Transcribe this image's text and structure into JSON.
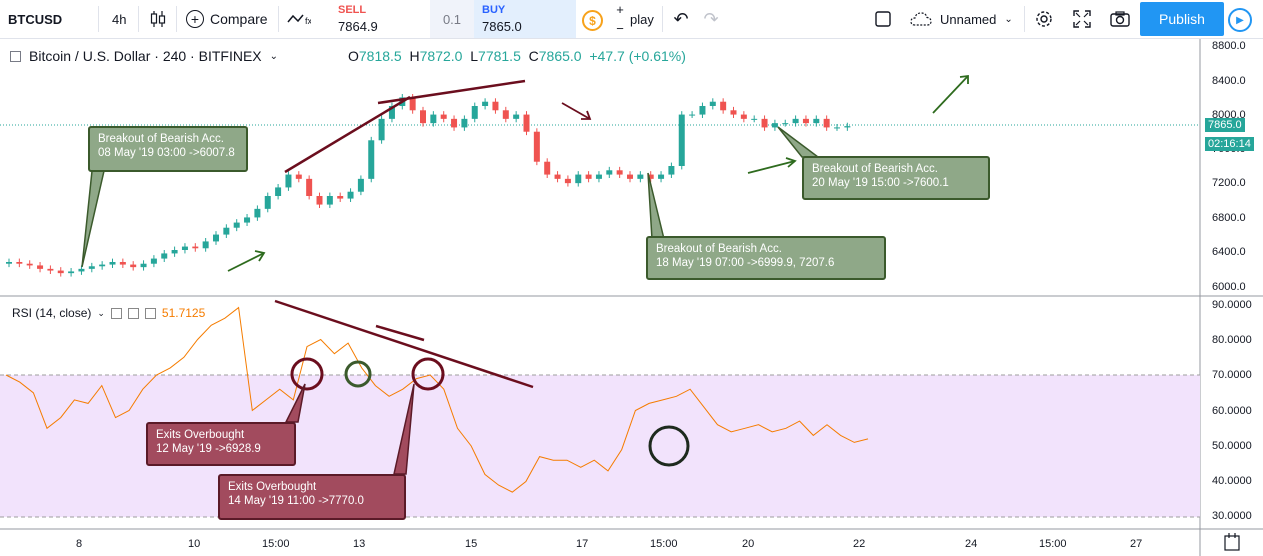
{
  "toolbar": {
    "symbol": "BTCUSD",
    "interval": "4h",
    "compare_label": "Compare",
    "sell_label": "SELL",
    "sell_price": "7864.9",
    "spread": "0.1",
    "buy_label": "BUY",
    "buy_price": "7865.0",
    "plus": "+",
    "minus": "−",
    "replay_label": "play",
    "layout_name": "Unnamed",
    "publish_label": "Publish"
  },
  "legend": {
    "title": "Bitcoin / U.S. Dollar · 240 · BITFINEX",
    "open_label": "O",
    "open": "7818.5",
    "high_label": "H",
    "high": "7872.0",
    "low_label": "L",
    "low": "7781.5",
    "close_label": "C",
    "close": "7865.0",
    "change": "+47.7 (+0.61%)"
  },
  "price_axis": {
    "ticks": [
      "8800.0",
      "8400.0",
      "8000.0",
      "7600.0",
      "7200.0",
      "6800.0",
      "6400.0",
      "6000.0"
    ],
    "current": "7865.0",
    "countdown": "02:16:14"
  },
  "rsi": {
    "label": "RSI (14, close)",
    "value": "51.7125",
    "ticks": [
      "90.0000",
      "80.0000",
      "70.0000",
      "60.0000",
      "50.0000",
      "40.0000",
      "30.0000"
    ]
  },
  "time_axis": [
    "8",
    "10",
    "15:00",
    "13",
    "15",
    "17",
    "15:00",
    "20",
    "22",
    "24",
    "15:00",
    "27"
  ],
  "annotations": {
    "note1_line1": "Breakout of Bearish Acc.",
    "note1_line2": "08 May '19 03:00 ->6007.8",
    "note2_line1": "Breakout of Bearish Acc.",
    "note2_line2": "18 May '19 07:00 ->6999.9, 7207.6",
    "note3_line1": "Breakout of Bearish Acc.",
    "note3_line2": "20 May '19 15:00 ->7600.1",
    "note4_line1": "Exits Overbought",
    "note4_line2": "12 May '19 ->6928.9",
    "note5_line1": "Exits Overbought",
    "note5_line2": "14 May '19 11:00 ->7770.0"
  },
  "colors": {
    "up": "#26a69a",
    "down": "#ef5350",
    "rsi_line": "#f57c00",
    "rsi_band": "#f0e0fb",
    "accent": "#2196f3"
  },
  "chart_data": {
    "type": "line",
    "candles_close": [
      6280,
      6260,
      6240,
      6200,
      6180,
      6150,
      6170,
      6200,
      6230,
      6250,
      6280,
      6250,
      6220,
      6260,
      6320,
      6380,
      6420,
      6460,
      6440,
      6520,
      6600,
      6680,
      6740,
      6800,
      6900,
      7050,
      7150,
      7300,
      7250,
      7050,
      6950,
      7050,
      7020,
      7100,
      7250,
      7700,
      7950,
      8100,
      8200,
      8050,
      7900,
      8000,
      7950,
      7850,
      7950,
      8100,
      8150,
      8050,
      7950,
      8000,
      7800,
      7450,
      7300,
      7250,
      7200,
      7300,
      7250,
      7300,
      7350,
      7300,
      7250,
      7300,
      7250,
      7300,
      7400,
      8000,
      8000,
      8100,
      8150,
      8050,
      8000,
      7950,
      7950,
      7850,
      7900,
      7900,
      7950,
      7900,
      7950,
      7850,
      7850,
      7865
    ],
    "rsi_values": [
      70,
      68,
      65,
      55,
      58,
      63,
      62,
      67,
      58,
      60,
      66,
      70,
      72,
      75,
      80,
      84,
      86,
      89,
      60,
      63,
      66,
      63,
      78,
      80,
      76,
      79,
      72,
      67,
      64,
      66,
      69,
      70,
      66,
      55,
      50,
      42,
      39,
      37,
      40,
      47,
      46,
      46,
      44,
      46,
      43,
      49,
      60,
      62,
      63,
      64,
      66,
      61,
      56,
      54,
      55,
      56,
      54,
      55,
      57,
      53,
      56,
      53,
      51,
      52
    ]
  }
}
